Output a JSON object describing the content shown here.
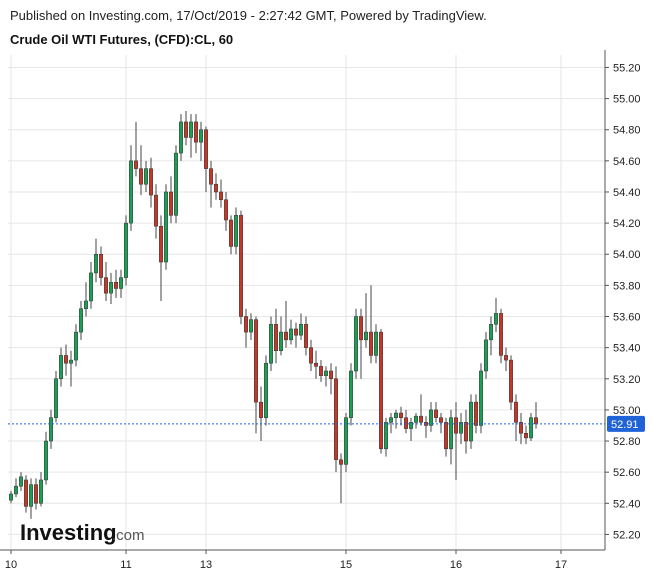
{
  "header": {
    "published": "Published on Investing.com, 17/Oct/2019 - 2:27:42 GMT, Powered by TradingView.",
    "title": "Crude Oil WTI Futures, (CFD):CL, 60"
  },
  "logo": {
    "brand": "Investing",
    "suffix": ".com"
  },
  "colors": {
    "up": "#1e9e55",
    "down": "#c0392b",
    "wick": "#444444",
    "grid": "#e6e6e6",
    "last": "#1f63d6"
  },
  "chart_data": {
    "type": "candlestick",
    "title": "Crude Oil WTI Futures, (CFD):CL, 60",
    "ylim": [
      52.1,
      55.28
    ],
    "y_ticks": [
      "55.20",
      "55.00",
      "54.80",
      "54.60",
      "54.40",
      "54.20",
      "54.00",
      "53.80",
      "53.60",
      "53.40",
      "53.20",
      "53.00",
      "52.80",
      "52.60",
      "52.40",
      "52.20"
    ],
    "x_ticks": [
      {
        "label": "10",
        "index": 0
      },
      {
        "label": "11",
        "index": 23
      },
      {
        "label": "13",
        "index": 39
      },
      {
        "label": "15",
        "index": 67
      },
      {
        "label": "16",
        "index": 89
      },
      {
        "label": "17",
        "index": 110
      }
    ],
    "last_price": 52.91,
    "last_price_label": "52.91",
    "candles": [
      [
        52.42,
        52.48,
        52.4,
        52.46
      ],
      [
        52.46,
        52.56,
        52.44,
        52.51
      ],
      [
        52.51,
        52.6,
        52.48,
        52.57
      ],
      [
        52.55,
        52.58,
        52.34,
        52.38
      ],
      [
        52.38,
        52.56,
        52.3,
        52.52
      ],
      [
        52.52,
        52.56,
        52.36,
        52.4
      ],
      [
        52.4,
        52.6,
        52.38,
        52.55
      ],
      [
        52.55,
        52.86,
        52.52,
        52.8
      ],
      [
        52.8,
        53.0,
        52.75,
        52.95
      ],
      [
        52.95,
        53.25,
        52.92,
        53.2
      ],
      [
        53.2,
        53.4,
        53.15,
        53.35
      ],
      [
        53.35,
        53.42,
        53.22,
        53.3
      ],
      [
        53.3,
        53.38,
        53.15,
        53.32
      ],
      [
        53.32,
        53.55,
        53.28,
        53.5
      ],
      [
        53.5,
        53.7,
        53.45,
        53.65
      ],
      [
        53.65,
        53.82,
        53.6,
        53.7
      ],
      [
        53.7,
        53.95,
        53.65,
        53.88
      ],
      [
        53.88,
        54.1,
        53.82,
        54.0
      ],
      [
        54.0,
        54.05,
        53.8,
        53.85
      ],
      [
        53.85,
        53.95,
        53.7,
        53.75
      ],
      [
        53.75,
        53.88,
        53.68,
        53.82
      ],
      [
        53.82,
        53.9,
        53.72,
        53.78
      ],
      [
        53.78,
        53.9,
        53.72,
        53.85
      ],
      [
        53.85,
        54.25,
        53.8,
        54.2
      ],
      [
        54.2,
        54.7,
        54.15,
        54.6
      ],
      [
        54.6,
        54.85,
        54.5,
        54.55
      ],
      [
        54.55,
        54.7,
        54.38,
        54.45
      ],
      [
        54.45,
        54.6,
        54.4,
        54.55
      ],
      [
        54.55,
        54.62,
        54.3,
        54.38
      ],
      [
        54.38,
        54.45,
        54.1,
        54.18
      ],
      [
        54.18,
        54.25,
        53.7,
        53.95
      ],
      [
        53.95,
        54.45,
        53.9,
        54.4
      ],
      [
        54.4,
        54.5,
        54.2,
        54.25
      ],
      [
        54.25,
        54.7,
        54.2,
        54.65
      ],
      [
        54.65,
        54.9,
        54.6,
        54.85
      ],
      [
        54.85,
        54.92,
        54.7,
        54.75
      ],
      [
        54.75,
        54.9,
        54.62,
        54.85
      ],
      [
        54.85,
        54.9,
        54.65,
        54.72
      ],
      [
        54.72,
        54.85,
        54.6,
        54.8
      ],
      [
        54.8,
        54.82,
        54.4,
        54.55
      ],
      [
        54.55,
        54.6,
        54.3,
        54.45
      ],
      [
        54.45,
        54.52,
        54.35,
        54.4
      ],
      [
        54.4,
        54.48,
        54.3,
        54.35
      ],
      [
        54.35,
        54.4,
        54.15,
        54.22
      ],
      [
        54.22,
        54.25,
        54.0,
        54.05
      ],
      [
        54.05,
        54.3,
        54.0,
        54.25
      ],
      [
        54.25,
        54.28,
        53.55,
        53.6
      ],
      [
        53.6,
        53.65,
        53.4,
        53.5
      ],
      [
        53.5,
        53.62,
        53.45,
        53.58
      ],
      [
        53.58,
        53.6,
        52.85,
        53.05
      ],
      [
        53.05,
        53.15,
        52.8,
        52.95
      ],
      [
        52.95,
        53.35,
        52.9,
        53.3
      ],
      [
        53.3,
        53.6,
        53.25,
        53.55
      ],
      [
        53.55,
        53.65,
        53.3,
        53.38
      ],
      [
        53.38,
        53.6,
        53.35,
        53.5
      ],
      [
        53.5,
        53.7,
        53.4,
        53.45
      ],
      [
        53.45,
        53.58,
        53.42,
        53.52
      ],
      [
        53.52,
        53.56,
        53.4,
        53.48
      ],
      [
        53.48,
        53.62,
        53.45,
        53.55
      ],
      [
        53.55,
        53.6,
        53.35,
        53.4
      ],
      [
        53.4,
        53.45,
        53.25,
        53.3
      ],
      [
        53.3,
        53.38,
        53.2,
        53.28
      ],
      [
        53.28,
        53.32,
        53.18,
        53.22
      ],
      [
        53.22,
        53.28,
        53.15,
        53.25
      ],
      [
        53.25,
        53.3,
        53.1,
        53.2
      ],
      [
        53.2,
        53.28,
        52.6,
        52.68
      ],
      [
        52.68,
        52.72,
        52.4,
        52.65
      ],
      [
        52.65,
        52.98,
        52.6,
        52.95
      ],
      [
        52.95,
        53.3,
        52.9,
        53.25
      ],
      [
        53.25,
        53.65,
        53.2,
        53.6
      ],
      [
        53.6,
        53.65,
        53.2,
        53.45
      ],
      [
        53.45,
        53.75,
        53.4,
        53.5
      ],
      [
        53.5,
        53.8,
        53.3,
        53.35
      ],
      [
        53.35,
        53.55,
        53.3,
        53.5
      ],
      [
        53.5,
        53.52,
        52.72,
        52.75
      ],
      [
        52.75,
        52.95,
        52.7,
        52.92
      ],
      [
        52.92,
        52.98,
        52.85,
        52.95
      ],
      [
        52.95,
        53.0,
        52.88,
        52.98
      ],
      [
        52.98,
        53.02,
        52.9,
        52.95
      ],
      [
        52.95,
        53.0,
        52.85,
        52.88
      ],
      [
        52.88,
        52.95,
        52.8,
        52.92
      ],
      [
        52.92,
        52.98,
        52.88,
        52.96
      ],
      [
        52.96,
        53.1,
        52.9,
        52.92
      ],
      [
        52.92,
        52.96,
        52.82,
        52.9
      ],
      [
        52.9,
        53.05,
        52.86,
        53.0
      ],
      [
        53.0,
        53.05,
        52.92,
        52.95
      ],
      [
        52.95,
        52.98,
        52.85,
        52.92
      ],
      [
        52.92,
        52.95,
        52.7,
        52.75
      ],
      [
        52.75,
        53.0,
        52.65,
        52.95
      ],
      [
        52.95,
        53.05,
        52.55,
        52.85
      ],
      [
        52.85,
        52.98,
        52.78,
        52.92
      ],
      [
        52.92,
        53.0,
        52.72,
        52.8
      ],
      [
        52.8,
        53.1,
        52.75,
        53.05
      ],
      [
        53.05,
        53.1,
        52.85,
        52.9
      ],
      [
        52.9,
        53.3,
        52.85,
        53.25
      ],
      [
        53.25,
        53.5,
        53.2,
        53.45
      ],
      [
        53.45,
        53.6,
        53.35,
        53.55
      ],
      [
        53.55,
        53.72,
        53.5,
        53.62
      ],
      [
        53.62,
        53.65,
        53.3,
        53.35
      ],
      [
        53.35,
        53.4,
        53.25,
        53.32
      ],
      [
        53.32,
        53.35,
        53.0,
        53.05
      ],
      [
        53.05,
        53.1,
        52.8,
        52.92
      ],
      [
        52.92,
        52.98,
        52.78,
        52.85
      ],
      [
        52.85,
        52.9,
        52.78,
        52.82
      ],
      [
        52.82,
        52.98,
        52.8,
        52.95
      ],
      [
        52.95,
        53.05,
        52.88,
        52.91
      ]
    ]
  }
}
